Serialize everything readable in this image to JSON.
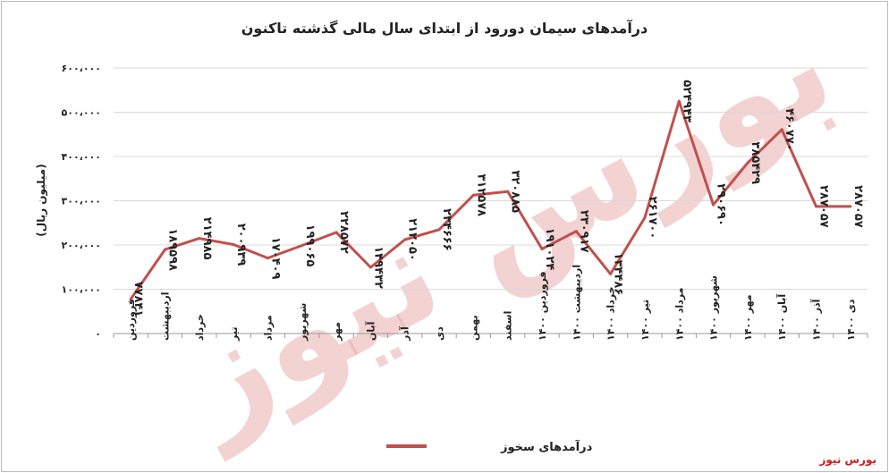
{
  "brand": "بورس نیوز",
  "watermark": "بورس نیوز",
  "colors": {
    "line": "#c0504d",
    "grid": "#d9d9d9",
    "text": "#222222",
    "brand": "#d21a1a"
  },
  "chart_data": {
    "type": "line",
    "title": "درآمدهای سیمان دورود از ابتدای سال مالی گذشته تاکنون",
    "ylabel": "(میلیون ریال)",
    "xlabel": "",
    "ylim": [
      0,
      600000
    ],
    "yticks": [
      0,
      100000,
      200000,
      300000,
      400000,
      500000,
      600000
    ],
    "ytick_labels": [
      "۰",
      "۱۰۰،۰۰۰",
      "۲۰۰،۰۰۰",
      "۳۰۰،۰۰۰",
      "۴۰۰،۰۰۰",
      "۵۰۰،۰۰۰",
      "۶۰۰،۰۰۰"
    ],
    "grid": true,
    "legend_position": "bottom",
    "categories": [
      "فروردین",
      "اردیبهشت",
      "خرداد",
      "تیر",
      "مرداد",
      "شهریور",
      "مهر",
      "آبان",
      "آذر",
      "دی",
      "بهمن",
      "اسفند",
      "فروردین ۱۴۰۰",
      "اردیبهشت ۱۴۰۰",
      "خرداد ۱۴۰۰",
      "تیر ۱۴۰۰",
      "مرداد ۱۴۰۰",
      "شهریور ۱۴۰۰",
      "مهر ۱۴۰۰",
      "آبان ۱۴۰۰",
      "آذر ۱۴۰۰",
      "دی ۱۴۰۰"
    ],
    "series": [
      {
        "name": "درآمدهای سخوز",
        "values": [
          77841,
          189598,
          214985,
          200939,
          170409,
          199065,
          228572,
          149432,
          212050,
          234666,
          312578,
          320885,
          191024,
          230917,
          134486,
          261700,
          524943,
          290690,
          385429,
          460770,
          287057,
          287057
        ],
        "labels": [
          "۷۷۸۴۱",
          "۱۸۹۵۹۸",
          "۲۱۴۹۸۵",
          "۲۰۰۹۳۹",
          "۱۷۰۴۰۹",
          "۱۹۹۰۶۵",
          "۲۲۸۵۷۲",
          "۱۴۹۴۳۲",
          "۲۱۲۰۵۰",
          "۲۳۴۶۶۶",
          "۳۱۲۵۷۸",
          "۳۲۰۸۸۵",
          "۱۹۱۰۲۴",
          "۲۳۰۹۱۷",
          "۱۳۴۴۸۶",
          "۲۶۱۷۰۰",
          "۵۲۴۹۴۳",
          "۲۹۰۶۹۰",
          "۳۸۵۴۲۹",
          "۴۶۰۷۷۰",
          "۲۸۷۰۵۷",
          "۲۸۷۰۵۷"
        ]
      }
    ]
  }
}
